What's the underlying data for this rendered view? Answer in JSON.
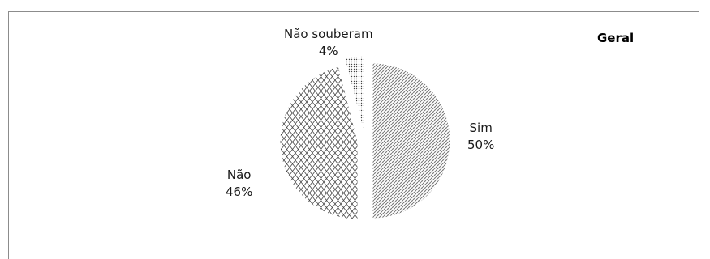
{
  "chart_data": {
    "type": "pie",
    "title": "Geral",
    "slices": [
      {
        "label": "Sim",
        "value": 50,
        "pct_label": "50%"
      },
      {
        "label": "Não",
        "value": 46,
        "pct_label": "46%"
      },
      {
        "label": "Não souberam",
        "value": 4,
        "pct_label": "4%"
      }
    ],
    "legend": "none",
    "style": "exploded, patterned black-and-white fills"
  }
}
